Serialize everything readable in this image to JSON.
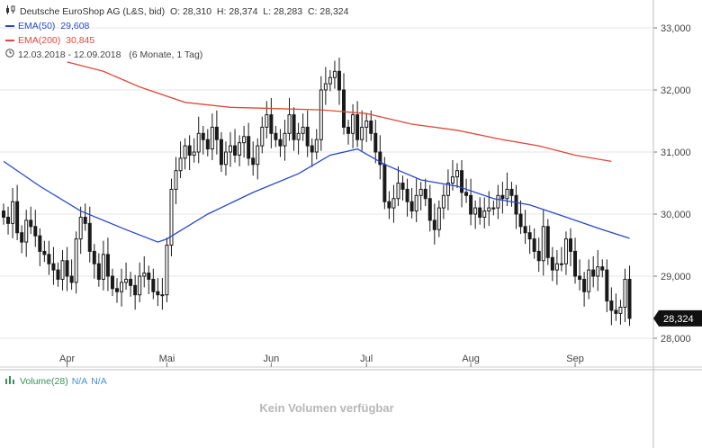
{
  "legend": {
    "title": "Deutsche EuroShop AG (L&S, bid)",
    "open": "O: 28,310",
    "high": "H: 28,374",
    "low": "L: 28,283",
    "close": "C: 28,324",
    "ema50_label": "EMA(50)",
    "ema50_value": "29,608",
    "ema200_label": "EMA(200)",
    "ema200_value": "30,845",
    "range": "12.03.2018 - 12.09.2018",
    "range_detail": "(6 Monate, 1 Tag)"
  },
  "price_badge": "28,324",
  "volume": {
    "label": "Volume(28)",
    "v1": "N/A",
    "v2": "N/A",
    "message": "Kein Volumen verfügbar"
  },
  "colors": {
    "ema50": "#2747c9",
    "ema200": "#e0483b",
    "candle": "#1a1a1a",
    "grid": "#e6e6e6",
    "volume_label": "#3a8f5a"
  },
  "chart_data": {
    "type": "candlestick",
    "x_tick_labels": [
      "Apr",
      "Mai",
      "Jun",
      "Jul",
      "Aug",
      "Sep"
    ],
    "x_ticks_day": [
      14,
      36,
      59,
      80,
      103,
      126
    ],
    "y_ticks": [
      28000,
      29000,
      30000,
      31000,
      32000,
      33000
    ],
    "y_tick_labels": [
      "28,000",
      "29,000",
      "30,000",
      "31,000",
      "32,000",
      "33,000"
    ],
    "ylim": [
      27650,
      33300
    ],
    "xlim": [
      0,
      139
    ],
    "ohlc_close": [
      29.95,
      29.85,
      30.2,
      29.7,
      29.55,
      29.9,
      29.8,
      29.65,
      29.4,
      29.35,
      29.2,
      29.1,
      28.95,
      29.25,
      29.0,
      28.9,
      29.6,
      29.95,
      29.85,
      29.4,
      29.2,
      28.95,
      29.35,
      29.0,
      28.8,
      28.75,
      28.9,
      28.95,
      28.85,
      28.7,
      29.0,
      29.05,
      28.95,
      28.75,
      28.7,
      28.7,
      29.5,
      30.4,
      30.7,
      30.9,
      31.1,
      30.95,
      31.0,
      31.3,
      31.2,
      31.05,
      31.4,
      31.2,
      30.8,
      31.0,
      31.1,
      30.95,
      31.15,
      31.25,
      30.9,
      30.8,
      31.1,
      31.4,
      31.6,
      31.3,
      31.2,
      31.1,
      31.3,
      31.6,
      31.2,
      31.3,
      31.4,
      31.1,
      31.0,
      31.2,
      32.0,
      32.1,
      32.2,
      32.3,
      32.0,
      31.4,
      31.3,
      31.6,
      31.2,
      31.4,
      31.5,
      31.3,
      31.0,
      30.8,
      30.2,
      30.1,
      30.25,
      30.5,
      30.4,
      30.2,
      30.05,
      30.3,
      30.4,
      30.25,
      29.9,
      29.75,
      30.1,
      30.3,
      30.5,
      30.6,
      30.7,
      30.35,
      30.3,
      30.0,
      30.1,
      29.95,
      30.05,
      30.1,
      30.1,
      30.3,
      30.25,
      30.4,
      30.3,
      30.0,
      29.8,
      29.7,
      29.6,
      29.4,
      29.25,
      29.8,
      29.3,
      29.1,
      29.2,
      29.2,
      29.6,
      29.4,
      29.0,
      28.95,
      28.75,
      29.1,
      29.0,
      29.15,
      29.1,
      28.6,
      28.45,
      28.4,
      28.5,
      28.95,
      28.32
    ],
    "ema50": [
      [
        0,
        30.85
      ],
      [
        8,
        30.45
      ],
      [
        17,
        30.05
      ],
      [
        27,
        29.75
      ],
      [
        34,
        29.55
      ],
      [
        36,
        29.6
      ],
      [
        45,
        30.0
      ],
      [
        55,
        30.35
      ],
      [
        65,
        30.65
      ],
      [
        72,
        30.95
      ],
      [
        78,
        31.05
      ],
      [
        84,
        30.8
      ],
      [
        92,
        30.55
      ],
      [
        100,
        30.45
      ],
      [
        108,
        30.25
      ],
      [
        116,
        30.15
      ],
      [
        124,
        29.95
      ],
      [
        132,
        29.75
      ],
      [
        138,
        29.61
      ]
    ],
    "ema200": [
      [
        14,
        32.45
      ],
      [
        22,
        32.3
      ],
      [
        30,
        32.05
      ],
      [
        40,
        31.8
      ],
      [
        50,
        31.72
      ],
      [
        60,
        31.7
      ],
      [
        70,
        31.68
      ],
      [
        80,
        31.62
      ],
      [
        90,
        31.45
      ],
      [
        100,
        31.35
      ],
      [
        110,
        31.2
      ],
      [
        118,
        31.1
      ],
      [
        126,
        30.95
      ],
      [
        134,
        30.85
      ]
    ]
  }
}
